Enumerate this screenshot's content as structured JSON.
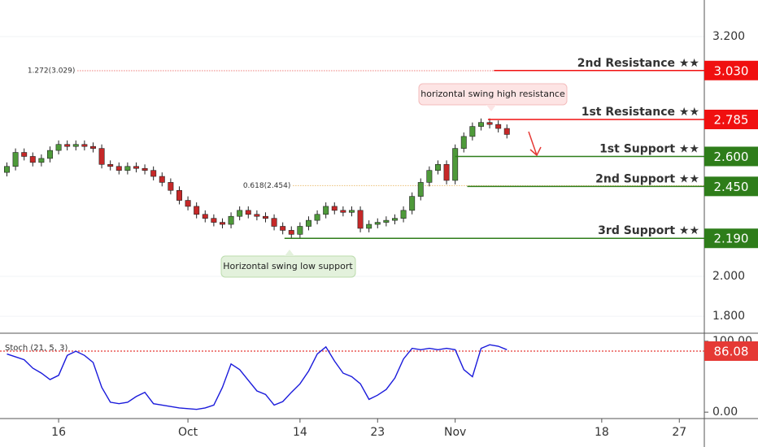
{
  "chart_data": {
    "type": "candlestick",
    "x": [
      10,
      11,
      12,
      13,
      14,
      15,
      16,
      17,
      18,
      19,
      20,
      21,
      22,
      23,
      24,
      25,
      26,
      27,
      28,
      29,
      30,
      31,
      32,
      33,
      34,
      35,
      36,
      37,
      38,
      39,
      40,
      41,
      42,
      43,
      44,
      45,
      46,
      47,
      48,
      49,
      50,
      51,
      52,
      53,
      54,
      55,
      56,
      57,
      58,
      59,
      60,
      61,
      62,
      63,
      64,
      65,
      66,
      67,
      68
    ],
    "open": [
      2.52,
      2.55,
      2.62,
      2.6,
      2.57,
      2.59,
      2.63,
      2.66,
      2.65,
      2.66,
      2.65,
      2.64,
      2.56,
      2.55,
      2.53,
      2.55,
      2.54,
      2.53,
      2.5,
      2.47,
      2.43,
      2.38,
      2.35,
      2.31,
      2.29,
      2.27,
      2.26,
      2.3,
      2.33,
      2.31,
      2.3,
      2.29,
      2.25,
      2.23,
      2.21,
      2.25,
      2.28,
      2.31,
      2.35,
      2.33,
      2.32,
      2.33,
      2.24,
      2.26,
      2.27,
      2.28,
      2.29,
      2.33,
      2.4,
      2.47,
      2.53,
      2.56,
      2.48,
      2.64,
      2.7,
      2.75,
      2.77,
      2.76,
      2.74
    ],
    "high": [
      2.57,
      2.64,
      2.64,
      2.62,
      2.61,
      2.65,
      2.68,
      2.68,
      2.68,
      2.68,
      2.67,
      2.66,
      2.58,
      2.57,
      2.57,
      2.57,
      2.56,
      2.55,
      2.52,
      2.49,
      2.45,
      2.4,
      2.37,
      2.33,
      2.31,
      2.29,
      2.32,
      2.35,
      2.35,
      2.33,
      2.32,
      2.31,
      2.27,
      2.25,
      2.27,
      2.3,
      2.33,
      2.37,
      2.37,
      2.35,
      2.35,
      2.35,
      2.28,
      2.29,
      2.3,
      2.31,
      2.35,
      2.42,
      2.49,
      2.55,
      2.58,
      2.58,
      2.66,
      2.72,
      2.77,
      2.79,
      2.79,
      2.78,
      2.76
    ],
    "low": [
      2.5,
      2.53,
      2.58,
      2.55,
      2.55,
      2.57,
      2.61,
      2.63,
      2.63,
      2.63,
      2.62,
      2.54,
      2.53,
      2.51,
      2.51,
      2.52,
      2.51,
      2.48,
      2.45,
      2.41,
      2.36,
      2.33,
      2.29,
      2.27,
      2.25,
      2.24,
      2.24,
      2.28,
      2.29,
      2.28,
      2.27,
      2.23,
      2.21,
      2.19,
      2.19,
      2.23,
      2.26,
      2.29,
      2.31,
      2.3,
      2.3,
      2.22,
      2.22,
      2.24,
      2.25,
      2.26,
      2.27,
      2.31,
      2.38,
      2.45,
      2.51,
      2.46,
      2.46,
      2.62,
      2.68,
      2.73,
      2.74,
      2.72,
      2.69
    ],
    "close": [
      2.55,
      2.62,
      2.6,
      2.57,
      2.59,
      2.63,
      2.66,
      2.65,
      2.66,
      2.65,
      2.64,
      2.56,
      2.55,
      2.53,
      2.55,
      2.54,
      2.53,
      2.5,
      2.47,
      2.43,
      2.38,
      2.35,
      2.31,
      2.29,
      2.27,
      2.26,
      2.3,
      2.33,
      2.31,
      2.3,
      2.29,
      2.25,
      2.23,
      2.21,
      2.25,
      2.28,
      2.31,
      2.35,
      2.33,
      2.32,
      2.33,
      2.24,
      2.26,
      2.27,
      2.28,
      2.29,
      2.33,
      2.4,
      2.47,
      2.53,
      2.56,
      2.48,
      2.64,
      2.7,
      2.75,
      2.77,
      2.76,
      2.74,
      2.71
    ],
    "up_color": "#4e9a3a",
    "down_color": "#c62828",
    "xlim": [
      9.2,
      90.9
    ],
    "xticks": [
      16,
      {
        "value": 31,
        "label": "Oct"
      },
      {
        "value": 44,
        "label": "14"
      },
      {
        "value": 53,
        "label": "23"
      },
      {
        "value": 62,
        "label": "Nov"
      },
      {
        "value": 79,
        "label": "18"
      },
      {
        "value": 88,
        "label": "27"
      }
    ],
    "ylim": [
      1.715,
      3.383
    ],
    "yticks": [
      {
        "value": 1.8,
        "label": "1.800"
      },
      {
        "value": 2.0,
        "label": "2.000"
      },
      {
        "value": 3.2,
        "label": "3.200"
      }
    ],
    "levels": [
      {
        "name": "2nd Resistance ★★",
        "value": 3.03,
        "value_label": "3.030",
        "color": "#f01010",
        "from": 66.5
      },
      {
        "name": "1st Resistance ★★",
        "value": 2.785,
        "value_label": "2.785",
        "color": "#f01010",
        "from": 65.8
      },
      {
        "name": "1st Support ★★",
        "value": 2.6,
        "value_label": "2.600",
        "color": "#2e7d1a",
        "from": 62.0
      },
      {
        "name": "2nd Support ★★",
        "value": 2.45,
        "value_label": "2.450",
        "color": "#2e7d1a",
        "from": 63.4
      },
      {
        "name": "3rd Support ★★",
        "value": 2.19,
        "value_label": "2.190",
        "color": "#2e7d1a",
        "from": 42.2
      }
    ],
    "fib_levels": [
      {
        "label": "1.272(3.029)",
        "value": 3.029,
        "color": "#e53935",
        "from": 18.2,
        "to": 66.5
      },
      {
        "label": "0.618(2.454)",
        "value": 2.454,
        "color": "#e0a030",
        "from": 43.2,
        "to": 90.9
      }
    ],
    "annotations": [
      "horizontal swing high resistance",
      "Horizontal swing low support"
    ],
    "stoch": {
      "title": "Stoch (21, 5, 3)",
      "color": "#1a1adb",
      "values": [
        82,
        78,
        74,
        62,
        55,
        46,
        52,
        80,
        86,
        80,
        70,
        35,
        14,
        12,
        14,
        22,
        28,
        12,
        10,
        8,
        6,
        5,
        4,
        6,
        10,
        35,
        68,
        60,
        45,
        30,
        25,
        10,
        15,
        28,
        40,
        58,
        82,
        92,
        72,
        55,
        50,
        40,
        18,
        24,
        32,
        48,
        75,
        90,
        88,
        90,
        88,
        90,
        88,
        60,
        50,
        90,
        95,
        93,
        88
      ],
      "ylim": [
        -9,
        109
      ],
      "yticks": [
        {
          "value": 0,
          "label": "0.00"
        },
        {
          "value": 100,
          "label": "100.00"
        }
      ],
      "level": 86.08,
      "level_label": "86.08",
      "level_color": "#e53935"
    }
  }
}
